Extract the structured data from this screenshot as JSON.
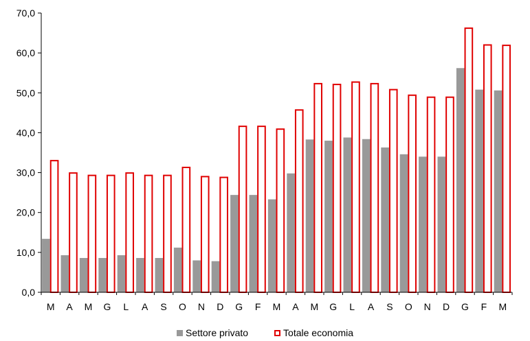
{
  "chart_data": {
    "type": "bar",
    "categories": [
      "M",
      "A",
      "M",
      "G",
      "L",
      "A",
      "S",
      "O",
      "N",
      "D",
      "G",
      "F",
      "M",
      "A",
      "M",
      "G",
      "L",
      "A",
      "S",
      "O",
      "N",
      "D",
      "G",
      "F",
      "M"
    ],
    "series": [
      {
        "name": "Settore privato",
        "color": "#999999",
        "style": "filled",
        "values": [
          13.4,
          9.3,
          8.6,
          8.6,
          9.3,
          8.6,
          8.6,
          11.2,
          8.0,
          7.8,
          24.4,
          24.4,
          23.3,
          29.8,
          38.3,
          38.0,
          38.8,
          38.4,
          36.3,
          34.6,
          34.0,
          34.0,
          56.2,
          50.8,
          50.6
        ]
      },
      {
        "name": "Totale economia",
        "color": "#e00000",
        "style": "outline",
        "values": [
          33.0,
          29.9,
          29.3,
          29.3,
          29.9,
          29.3,
          29.3,
          31.3,
          29.0,
          28.8,
          41.6,
          41.6,
          40.9,
          45.7,
          52.3,
          52.1,
          52.7,
          52.3,
          50.8,
          49.4,
          48.9,
          48.9,
          66.2,
          62.0,
          61.9
        ]
      }
    ],
    "y_ticks": [
      "0,0",
      "10,0",
      "20,0",
      "30,0",
      "40,0",
      "50,0",
      "60,0",
      "70,0"
    ],
    "ylim": [
      0,
      70
    ],
    "grid": false,
    "legend_position": "bottom-center"
  }
}
